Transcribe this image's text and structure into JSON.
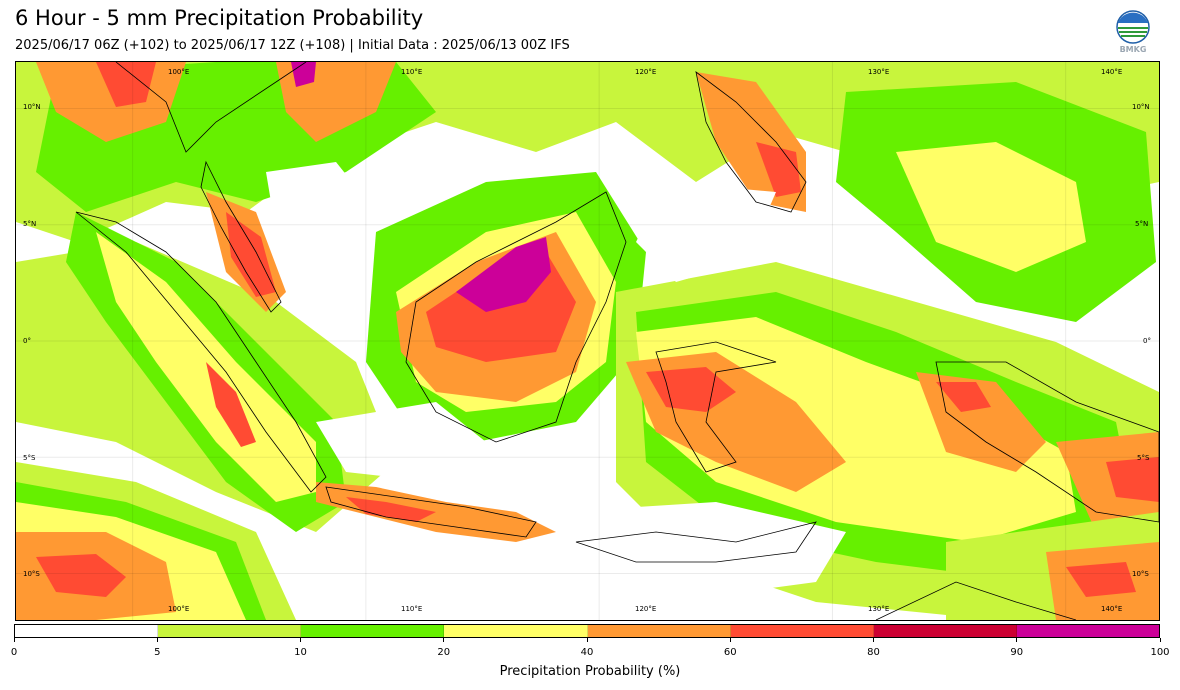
{
  "header": {
    "title": "6 Hour - 5 mm Precipitation Probability",
    "subtitle": "2025/06/17 06Z (+102) to 2025/06/17 12Z (+108) | Initial Data : 2025/06/13 00Z IFS",
    "logo_text": "BMKG"
  },
  "map": {
    "lon_labels": [
      "100°E",
      "110°E",
      "120°E",
      "130°E",
      "140°E"
    ],
    "lon_values": [
      100,
      110,
      120,
      130,
      140
    ],
    "lat_labels": [
      "10°N",
      "5°N",
      "0°",
      "5°S",
      "10°S"
    ],
    "lat_values": [
      10,
      5,
      0,
      -5,
      -10
    ],
    "extent": {
      "lon_min": 95,
      "lon_max": 144,
      "lat_min": -12,
      "lat_max": 12
    }
  },
  "colorbar": {
    "label": "Precipitation Probability (%)",
    "ticks": [
      "0",
      "5",
      "10",
      "20",
      "40",
      "60",
      "80",
      "90",
      "100"
    ],
    "colors": [
      "#ffffff",
      "#c8f53c",
      "#66f000",
      "#ffff66",
      "#ff9933",
      "#ff4b33",
      "#cc0033",
      "#cc0099"
    ]
  },
  "colors": {
    "white": "#ffffff",
    "lime": "#c8f53c",
    "green": "#66f000",
    "yellow": "#ffff66",
    "orange": "#ff9933",
    "red": "#ff4b33",
    "crimson": "#cc0033",
    "magenta": "#cc0099"
  }
}
